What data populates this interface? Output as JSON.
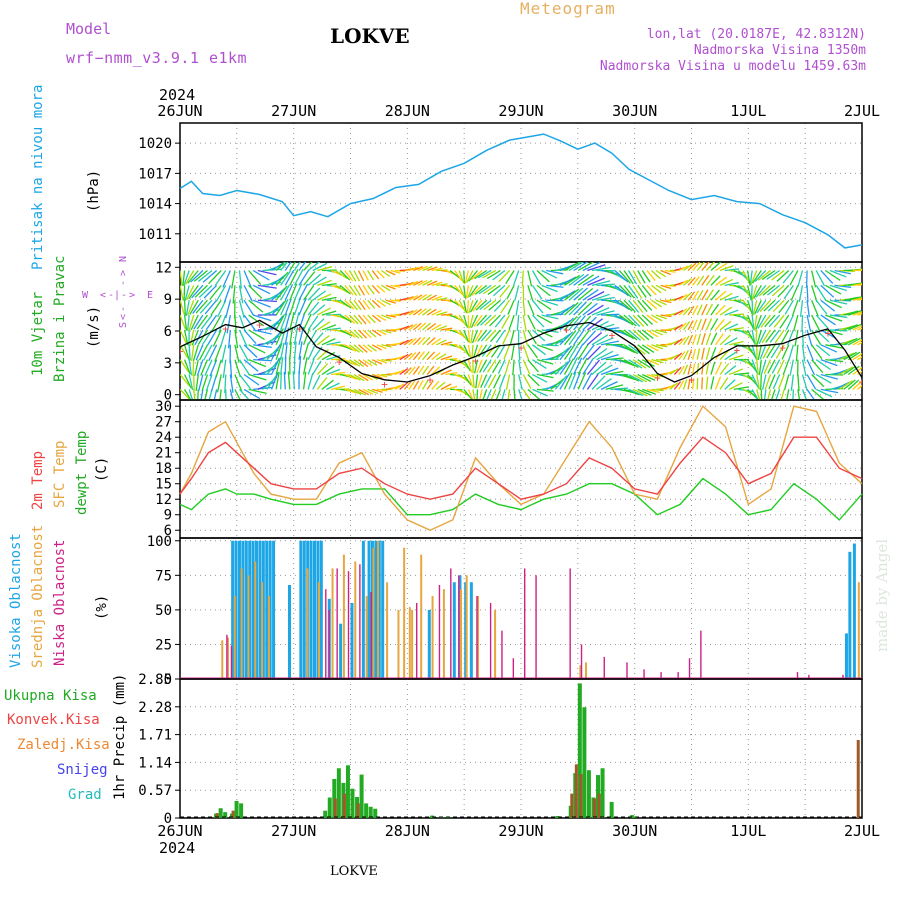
{
  "header": {
    "model_label": "Model",
    "model_name": "wrf−nmm_v3.9.1  e1km",
    "station": "LOKVE",
    "product": "Meteogram",
    "lonlat": "lon,lat (20.0187E, 42.8312N)",
    "elevation": "Nadmorska Visina 1350m",
    "model_elevation": "Nadmorska Visina u modelu 1459.63m",
    "watermark": "made by Angel",
    "footer_station": "LOKVE"
  },
  "colors": {
    "pressure": "#1da6e6",
    "temp2m": "#ee4444",
    "sfc": "#e6a640",
    "dewpt": "#22cc22",
    "high_cloud": "#1da6e6",
    "mid_cloud": "#e6a640",
    "low_cloud": "#cc2288",
    "total_precip": "#22aa22",
    "conv_precip": "#ee4444",
    "frozen": "#ee8833",
    "snow": "#4444ee",
    "hail": "#22bbbb",
    "title_magenta": "#b050d0",
    "meteogram_orange": "#e6b060"
  },
  "time_axis": {
    "year": "2024",
    "day_labels": [
      "26JUN",
      "27JUN",
      "28JUN",
      "29JUN",
      "30JUN",
      "1JUL",
      "2JUL"
    ]
  },
  "chart_data": [
    {
      "type": "line",
      "id": "pressure",
      "ylabel_parts": [
        "Pritisak na nivou mora",
        "(hPa)"
      ],
      "yticks": [
        1011,
        1014,
        1017,
        1020
      ],
      "ylim": [
        1008.2,
        1022
      ],
      "series": [
        {
          "x": [
            0,
            0.1,
            0.2,
            0.35,
            0.5,
            0.7,
            0.9,
            1.0,
            1.15,
            1.3,
            1.5,
            1.7,
            1.9,
            2.1,
            2.3,
            2.5,
            2.7,
            2.9,
            3.05,
            3.2,
            3.35,
            3.5,
            3.65,
            3.8,
            3.95,
            4.1,
            4.3,
            4.5,
            4.7,
            4.9,
            5.1,
            5.3,
            5.5,
            5.7,
            5.85,
            6.0
          ],
          "y": [
            1015.5,
            1016.2,
            1015.0,
            1014.8,
            1015.3,
            1014.9,
            1014.2,
            1012.8,
            1013.2,
            1012.7,
            1014.0,
            1014.5,
            1015.6,
            1015.9,
            1017.2,
            1018.0,
            1019.3,
            1020.3,
            1020.6,
            1020.9,
            1020.2,
            1019.4,
            1020.0,
            1019.0,
            1017.4,
            1016.5,
            1015.3,
            1014.4,
            1014.8,
            1014.2,
            1014.0,
            1012.9,
            1012.1,
            1010.9,
            1009.6,
            1009.9
          ]
        }
      ]
    },
    {
      "type": "line",
      "id": "wind",
      "ylabel_parts": [
        "10m Vjetar",
        "Brzina i Pravac",
        "(m/s)"
      ],
      "compass": {
        "north": "N",
        "west": "W",
        "east": "E",
        "south": "S"
      },
      "yticks": [
        0,
        3,
        6,
        9,
        12
      ],
      "ylim": [
        -0.5,
        12.5
      ],
      "series": [
        {
          "name": "speed",
          "x": [
            0,
            0.2,
            0.4,
            0.55,
            0.7,
            0.9,
            1.05,
            1.2,
            1.4,
            1.6,
            1.8,
            2.0,
            2.2,
            2.4,
            2.6,
            2.8,
            3.0,
            3.2,
            3.4,
            3.6,
            3.8,
            4.0,
            4.2,
            4.35,
            4.5,
            4.7,
            4.9,
            5.1,
            5.3,
            5.5,
            5.7,
            5.85,
            6.0
          ],
          "y": [
            4.5,
            5.5,
            6.6,
            6.3,
            7.0,
            5.8,
            6.6,
            4.5,
            3.5,
            2.0,
            1.4,
            1.2,
            1.8,
            2.8,
            3.6,
            4.6,
            4.8,
            5.8,
            6.5,
            6.8,
            6.0,
            4.6,
            2.0,
            1.2,
            1.8,
            3.5,
            4.6,
            4.6,
            4.8,
            5.6,
            6.2,
            4.2,
            1.6
          ]
        }
      ]
    },
    {
      "type": "line",
      "id": "temperature",
      "ylabel_parts": [
        "2m Temp",
        "SFC Temp",
        "dewpt Temp",
        "(C)"
      ],
      "yticks": [
        6,
        9,
        12,
        15,
        18,
        21,
        24,
        27,
        30
      ],
      "ylim": [
        4.5,
        31.2
      ],
      "series": [
        {
          "name": "2m Temp",
          "x": [
            0,
            0.1,
            0.25,
            0.4,
            0.5,
            0.65,
            0.8,
            1.0,
            1.2,
            1.4,
            1.6,
            1.8,
            2.0,
            2.2,
            2.4,
            2.6,
            2.8,
            3.0,
            3.2,
            3.4,
            3.6,
            3.8,
            4.0,
            4.2,
            4.4,
            4.6,
            4.8,
            5.0,
            5.2,
            5.4,
            5.6,
            5.8,
            6.0
          ],
          "y": [
            13,
            16,
            21,
            23,
            21,
            18,
            15,
            14,
            14,
            17,
            18,
            15,
            13,
            12,
            13,
            18,
            15,
            12,
            13,
            15,
            20,
            18,
            14,
            13,
            19,
            24,
            21,
            15,
            17,
            24,
            24,
            18,
            16
          ]
        },
        {
          "name": "SFC Temp",
          "x": [
            0,
            0.1,
            0.25,
            0.4,
            0.5,
            0.65,
            0.8,
            1.0,
            1.2,
            1.4,
            1.6,
            1.8,
            2.0,
            2.2,
            2.4,
            2.6,
            2.8,
            3.0,
            3.2,
            3.4,
            3.6,
            3.8,
            4.0,
            4.2,
            4.4,
            4.6,
            4.8,
            5.0,
            5.2,
            5.4,
            5.6,
            5.8,
            6.0
          ],
          "y": [
            13,
            17,
            25,
            27,
            23,
            17,
            13,
            12,
            12,
            19,
            21,
            13,
            8,
            6,
            8,
            20,
            15,
            11,
            13,
            20,
            27,
            22,
            13,
            12,
            22,
            30,
            26,
            11,
            14,
            30,
            29,
            19,
            15
          ]
        },
        {
          "name": "dewpt Temp",
          "x": [
            0,
            0.1,
            0.25,
            0.4,
            0.5,
            0.65,
            0.8,
            1.0,
            1.2,
            1.4,
            1.6,
            1.8,
            2.0,
            2.2,
            2.4,
            2.6,
            2.8,
            3.0,
            3.2,
            3.4,
            3.6,
            3.8,
            4.0,
            4.2,
            4.4,
            4.6,
            4.8,
            5.0,
            5.2,
            5.4,
            5.6,
            5.8,
            6.0
          ],
          "y": [
            11,
            10,
            13,
            14,
            13,
            13,
            12,
            11,
            11,
            13,
            14,
            14,
            9,
            9,
            10,
            13,
            11,
            10,
            12,
            13,
            15,
            15,
            13,
            9,
            11,
            16,
            13,
            9,
            10,
            15,
            12,
            8,
            13
          ]
        }
      ]
    },
    {
      "type": "bar",
      "id": "clouds",
      "ylabel_parts": [
        "Visoka Oblacnost",
        "Srednja Oblacnost",
        "Niska Oblacnost",
        "(%)"
      ],
      "yticks": [
        0,
        25,
        50,
        75,
        100
      ],
      "ylim": [
        0,
        102
      ],
      "series": [
        {
          "name": "Visoka Oblacnost",
          "x": [
            0.45,
            0.48,
            0.51,
            0.54,
            0.57,
            0.6,
            0.63,
            0.66,
            0.69,
            0.72,
            0.75,
            0.78,
            0.81,
            0.95,
            1.05,
            1.08,
            1.11,
            1.14,
            1.17,
            1.2,
            1.23,
            1.3,
            1.4,
            1.5,
            1.6,
            1.65,
            1.68,
            1.71,
            1.74,
            1.77,
            2.18,
            2.4,
            2.45,
            2.5,
            2.55,
            5.85,
            5.88,
            5.92
          ],
          "y": [
            100,
            100,
            100,
            100,
            100,
            100,
            100,
            100,
            100,
            100,
            100,
            100,
            100,
            68,
            100,
            100,
            100,
            100,
            100,
            100,
            100,
            58,
            40,
            55,
            100,
            100,
            100,
            100,
            100,
            100,
            50,
            70,
            75,
            70,
            70,
            33,
            92,
            98
          ]
        },
        {
          "name": "Srednja Oblacnost",
          "x": [
            0.35,
            0.4,
            0.46,
            0.52,
            0.58,
            0.64,
            0.7,
            0.76,
            1.1,
            1.2,
            1.32,
            1.42,
            1.52,
            1.62,
            1.68,
            1.72,
            1.8,
            1.9,
            1.95,
            2.0,
            2.02,
            2.1,
            2.2,
            2.3,
            2.45,
            2.5,
            2.6,
            2.75,
            3.5,
            3.55,
            5.95
          ],
          "y": [
            28,
            30,
            60,
            80,
            75,
            85,
            70,
            60,
            80,
            70,
            80,
            90,
            85,
            60,
            95,
            100,
            70,
            50,
            95,
            52,
            50,
            90,
            60,
            65,
            65,
            75,
            60,
            50,
            10,
            12,
            70
          ]
        },
        {
          "name": "Niska Oblacnost",
          "x": [
            0.38,
            0.42,
            1.25,
            1.28,
            1.35,
            1.45,
            1.55,
            1.65,
            2.05,
            2.25,
            2.35,
            2.42,
            2.58,
            2.7,
            2.8,
            2.9,
            3.0,
            3.1,
            3.4,
            3.5,
            3.7,
            3.9,
            4.05,
            4.2,
            4.35,
            4.45,
            4.55,
            5.4,
            5.5,
            5.8
          ],
          "y": [
            32,
            24,
            65,
            50,
            80,
            78,
            83,
            63,
            55,
            68,
            80,
            75,
            60,
            55,
            35,
            15,
            80,
            75,
            80,
            25,
            16,
            12,
            7,
            5,
            5,
            15,
            35,
            5,
            3,
            3
          ]
        }
      ]
    },
    {
      "type": "bar",
      "id": "precip",
      "ylabel_parts": [
        "1hr Precip (mm)"
      ],
      "legend": [
        "Ukupna  Kisa",
        "Konvek.Kisa",
        "Zaledj.Kisa",
        "Snijeg",
        "Grad"
      ],
      "yticks": [
        0,
        0.57,
        1.14,
        1.71,
        2.28,
        2.85
      ],
      "ylim": [
        0,
        2.85
      ],
      "series": [
        {
          "name": "Ukupna  Kisa",
          "x": [
            0.3,
            0.34,
            0.38,
            0.44,
            0.48,
            0.52,
            1.26,
            1.3,
            1.34,
            1.38,
            1.42,
            1.46,
            1.5,
            1.54,
            1.58,
            1.62,
            1.66,
            1.7,
            2.2,
            2.28,
            2.34,
            3.3,
            3.42,
            3.46,
            3.5,
            3.54,
            3.58,
            3.62,
            3.66,
            3.7,
            3.78,
            3.96,
            3.99
          ],
          "y": [
            0.09,
            0.2,
            0.12,
            0.09,
            0.35,
            0.3,
            0.15,
            0.42,
            0.8,
            1.02,
            0.72,
            1.08,
            0.6,
            0.43,
            0.89,
            0.3,
            0.23,
            0.19,
            0.05,
            0.02,
            0.02,
            0.04,
            0.25,
            0.92,
            2.76,
            2.27,
            0.98,
            0.42,
            0.88,
            1.02,
            0.33,
            0.06,
            0.03
          ]
        },
        {
          "name": "Konvek.Kisa",
          "x": [
            0.34,
            0.48,
            1.38,
            1.46,
            1.58,
            3.46,
            3.5,
            3.54,
            3.66,
            3.7,
            5.98
          ],
          "y": [
            0.1,
            0.15,
            0.4,
            0.5,
            0.3,
            0.5,
            1.1,
            0.9,
            0.4,
            0.5,
            1.6
          ]
        }
      ]
    }
  ]
}
